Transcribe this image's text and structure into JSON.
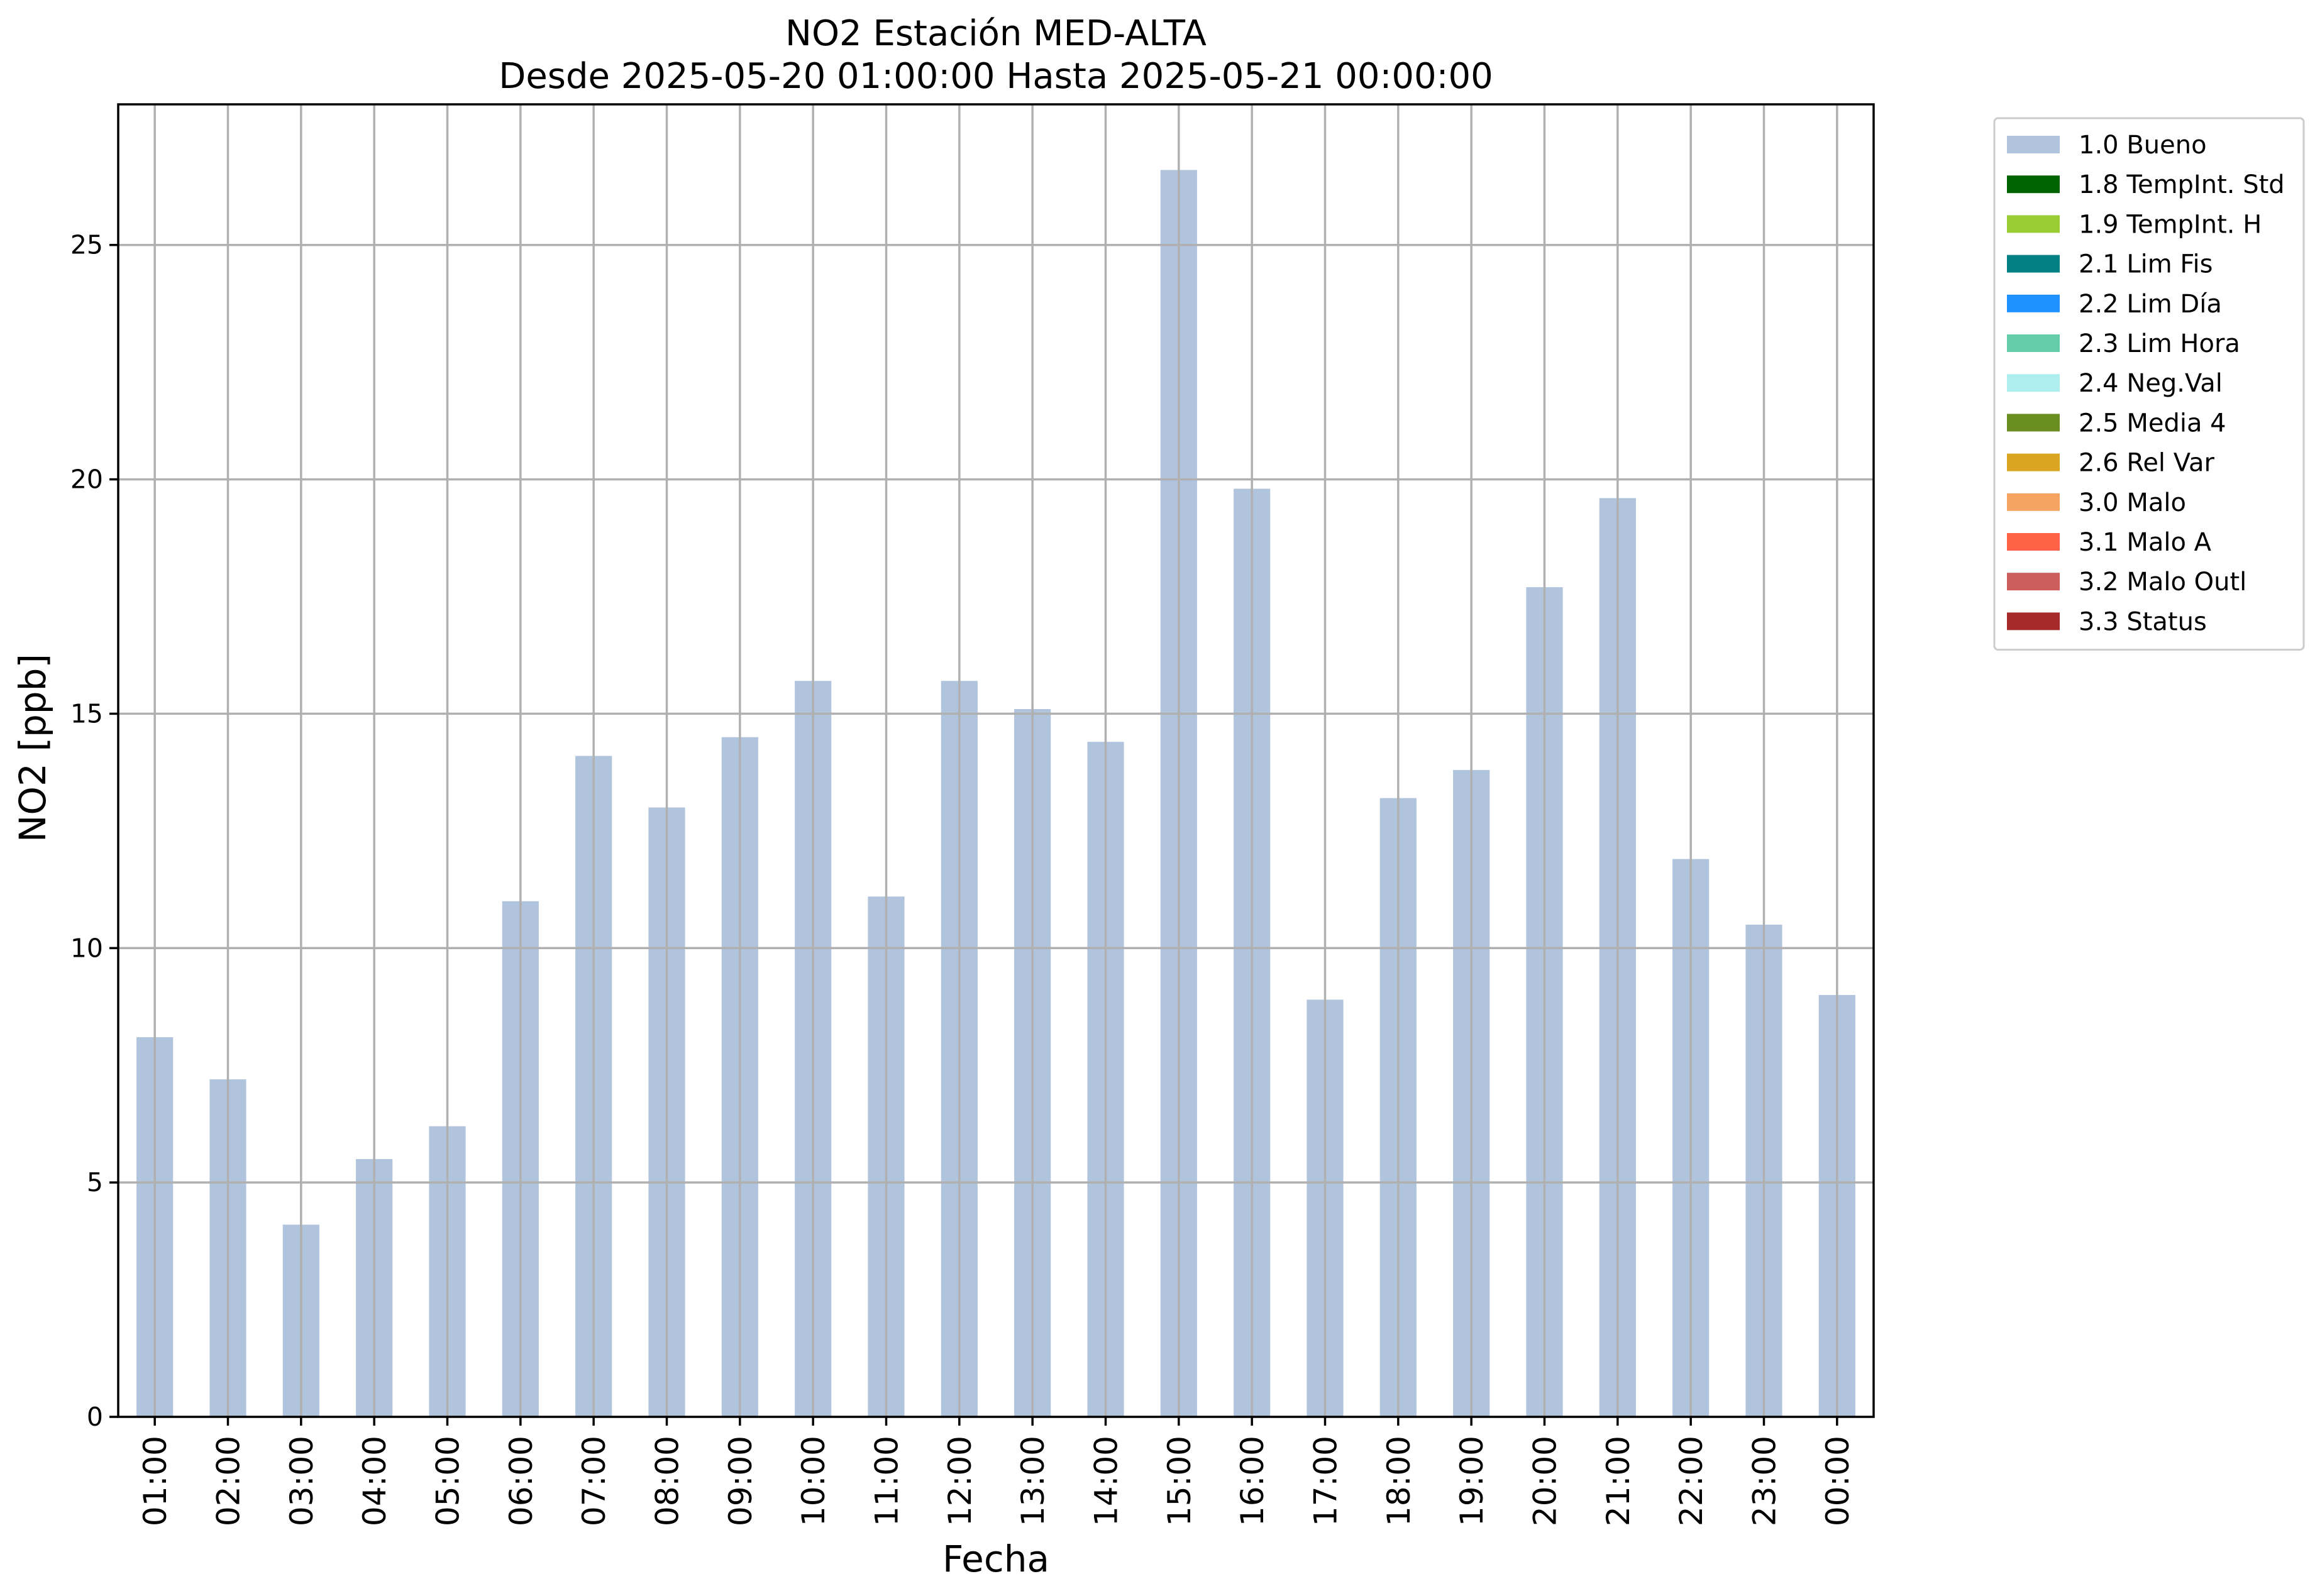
{
  "chart_data": {
    "type": "bar",
    "title": "NO2 Estación MED-ALTA",
    "subtitle": "Desde 2025-05-20 01:00:00 Hasta 2025-05-21 00:00:00",
    "xlabel": "Fecha",
    "ylabel": "NO2 [ppb]",
    "ylim": [
      0,
      28
    ],
    "yticks": [
      0,
      5,
      10,
      15,
      20,
      25
    ],
    "grid": true,
    "legend_position": "outside-top-right",
    "categories": [
      "01:00",
      "02:00",
      "03:00",
      "04:00",
      "05:00",
      "06:00",
      "07:00",
      "08:00",
      "09:00",
      "10:00",
      "11:00",
      "12:00",
      "13:00",
      "14:00",
      "15:00",
      "16:00",
      "17:00",
      "18:00",
      "19:00",
      "20:00",
      "21:00",
      "22:00",
      "23:00",
      "00:00"
    ],
    "series": [
      {
        "name": "1.0 Bueno",
        "color": "#b0c4de",
        "values": [
          8.1,
          7.2,
          4.1,
          5.5,
          6.2,
          11.0,
          14.1,
          13.0,
          14.5,
          15.7,
          11.1,
          15.7,
          15.1,
          14.4,
          26.6,
          19.8,
          8.9,
          13.2,
          13.8,
          17.7,
          19.6,
          11.9,
          10.5,
          9.0
        ]
      }
    ],
    "legend": [
      {
        "label": "1.0 Bueno",
        "color": "#b0c4de"
      },
      {
        "label": "1.8 TempInt. Std",
        "color": "#006400"
      },
      {
        "label": "1.9 TempInt. H",
        "color": "#9acd32"
      },
      {
        "label": "2.1 Lim Fis",
        "color": "#008080"
      },
      {
        "label": "2.2 Lim Día",
        "color": "#1e90ff"
      },
      {
        "label": "2.3 Lim Hora",
        "color": "#66cdaa"
      },
      {
        "label": "2.4 Neg.Val",
        "color": "#afeeee"
      },
      {
        "label": "2.5 Media 4",
        "color": "#6b8e23"
      },
      {
        "label": "2.6 Rel Var",
        "color": "#daa520"
      },
      {
        "label": "3.0 Malo",
        "color": "#f4a460"
      },
      {
        "label": "3.1 Malo A",
        "color": "#ff6347"
      },
      {
        "label": "3.2 Malo Outl",
        "color": "#cd5c5c"
      },
      {
        "label": "3.3 Status",
        "color": "#a52a2a"
      }
    ]
  }
}
